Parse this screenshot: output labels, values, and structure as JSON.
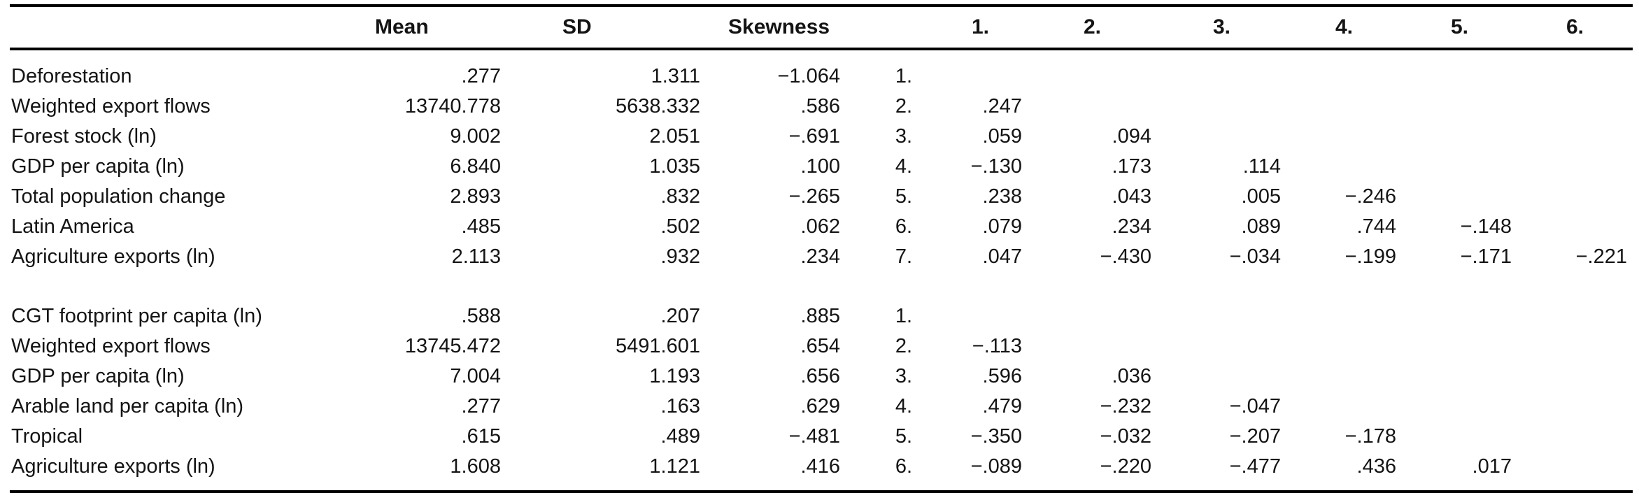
{
  "header": {
    "label": "",
    "mean": "Mean",
    "sd": "SD",
    "skewness": "Skewness",
    "num": "",
    "corr": [
      "1.",
      "2.",
      "3.",
      "4.",
      "5.",
      "6."
    ]
  },
  "panels": [
    {
      "name": "deforestation-panel",
      "rows": [
        {
          "label": "Deforestation",
          "mean": ".277",
          "sd": "1.311",
          "skewness": "−1.064",
          "num": "1.",
          "corr": [
            "",
            "",
            "",
            "",
            "",
            ""
          ]
        },
        {
          "label": "Weighted export flows",
          "mean": "13740.778",
          "sd": "5638.332",
          "skewness": ".586",
          "num": "2.",
          "corr": [
            ".247",
            "",
            "",
            "",
            "",
            ""
          ]
        },
        {
          "label": "Forest stock (ln)",
          "mean": "9.002",
          "sd": "2.051",
          "skewness": "−.691",
          "num": "3.",
          "corr": [
            ".059",
            ".094",
            "",
            "",
            "",
            ""
          ]
        },
        {
          "label": "GDP per capita (ln)",
          "mean": "6.840",
          "sd": "1.035",
          "skewness": ".100",
          "num": "4.",
          "corr": [
            "−.130",
            ".173",
            ".114",
            "",
            "",
            ""
          ]
        },
        {
          "label": "Total population change",
          "mean": "2.893",
          "sd": ".832",
          "skewness": "−.265",
          "num": "5.",
          "corr": [
            ".238",
            ".043",
            ".005",
            "−.246",
            "",
            ""
          ]
        },
        {
          "label": "Latin America",
          "mean": ".485",
          "sd": ".502",
          "skewness": ".062",
          "num": "6.",
          "corr": [
            ".079",
            ".234",
            ".089",
            ".744",
            "−.148",
            ""
          ]
        },
        {
          "label": "Agriculture exports (ln)",
          "mean": "2.113",
          "sd": ".932",
          "skewness": ".234",
          "num": "7.",
          "corr": [
            ".047",
            "−.430",
            "−.034",
            "−.199",
            "−.171",
            "−.221"
          ]
        }
      ]
    },
    {
      "name": "cgt-footprint-panel",
      "rows": [
        {
          "label": "CGT footprint per capita (ln)",
          "mean": ".588",
          "sd": ".207",
          "skewness": ".885",
          "num": "1.",
          "corr": [
            "",
            "",
            "",
            "",
            "",
            ""
          ]
        },
        {
          "label": "Weighted export flows",
          "mean": "13745.472",
          "sd": "5491.601",
          "skewness": ".654",
          "num": "2.",
          "corr": [
            "−.113",
            "",
            "",
            "",
            "",
            ""
          ]
        },
        {
          "label": "GDP per capita (ln)",
          "mean": "7.004",
          "sd": "1.193",
          "skewness": ".656",
          "num": "3.",
          "corr": [
            ".596",
            ".036",
            "",
            "",
            "",
            ""
          ]
        },
        {
          "label": "Arable land per capita (ln)",
          "mean": ".277",
          "sd": ".163",
          "skewness": ".629",
          "num": "4.",
          "corr": [
            ".479",
            "−.232",
            "−.047",
            "",
            "",
            ""
          ]
        },
        {
          "label": "Tropical",
          "mean": ".615",
          "sd": ".489",
          "skewness": "−.481",
          "num": "5.",
          "corr": [
            "−.350",
            "−.032",
            "−.207",
            "−.178",
            "",
            ""
          ]
        },
        {
          "label": "Agriculture exports (ln)",
          "mean": "1.608",
          "sd": "1.121",
          "skewness": ".416",
          "num": "6.",
          "corr": [
            "−.089",
            "−.220",
            "−.477",
            ".436",
            ".017",
            ""
          ]
        }
      ]
    }
  ]
}
